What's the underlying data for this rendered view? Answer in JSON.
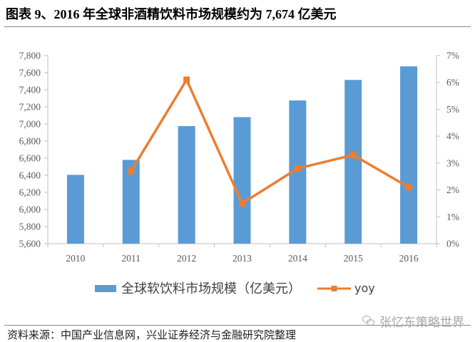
{
  "title": "图表 9、2016 年全球非酒精饮料市场规模约为 7,674 亿美元",
  "chart_data": {
    "type": "bar",
    "categories": [
      "2010",
      "2011",
      "2012",
      "2013",
      "2014",
      "2015",
      "2016"
    ],
    "series": [
      {
        "name": "全球软饮料市场规模（亿美元）",
        "type": "bar",
        "axis": "left",
        "color": "#5B9BD5",
        "values": [
          6405,
          6580,
          6975,
          7080,
          7275,
          7515,
          7674
        ]
      },
      {
        "name": "yoy",
        "type": "line",
        "axis": "right",
        "color": "#ED7D31",
        "values": [
          null,
          2.7,
          6.1,
          1.5,
          2.8,
          3.3,
          2.1
        ]
      }
    ],
    "y_left": {
      "min": 5600,
      "max": 7800,
      "step": 200,
      "tick_labels": [
        "5,600",
        "5,800",
        "6,000",
        "6,200",
        "6,400",
        "6,600",
        "6,800",
        "7,000",
        "7,200",
        "7,400",
        "7,600",
        "7,800"
      ]
    },
    "y_right": {
      "min": 0,
      "max": 7,
      "step": 1,
      "unit": "%",
      "tick_labels": [
        "0%",
        "1%",
        "2%",
        "3%",
        "4%",
        "5%",
        "6%",
        "7%"
      ]
    },
    "grid": false,
    "legend_placement": "bottom"
  },
  "source": "资料来源：中国产业信息网，兴业证券经济与金融研究院整理",
  "watermark": "张忆东策略世界",
  "colors": {
    "text": "#595959",
    "axis": "#BFBFBF"
  }
}
